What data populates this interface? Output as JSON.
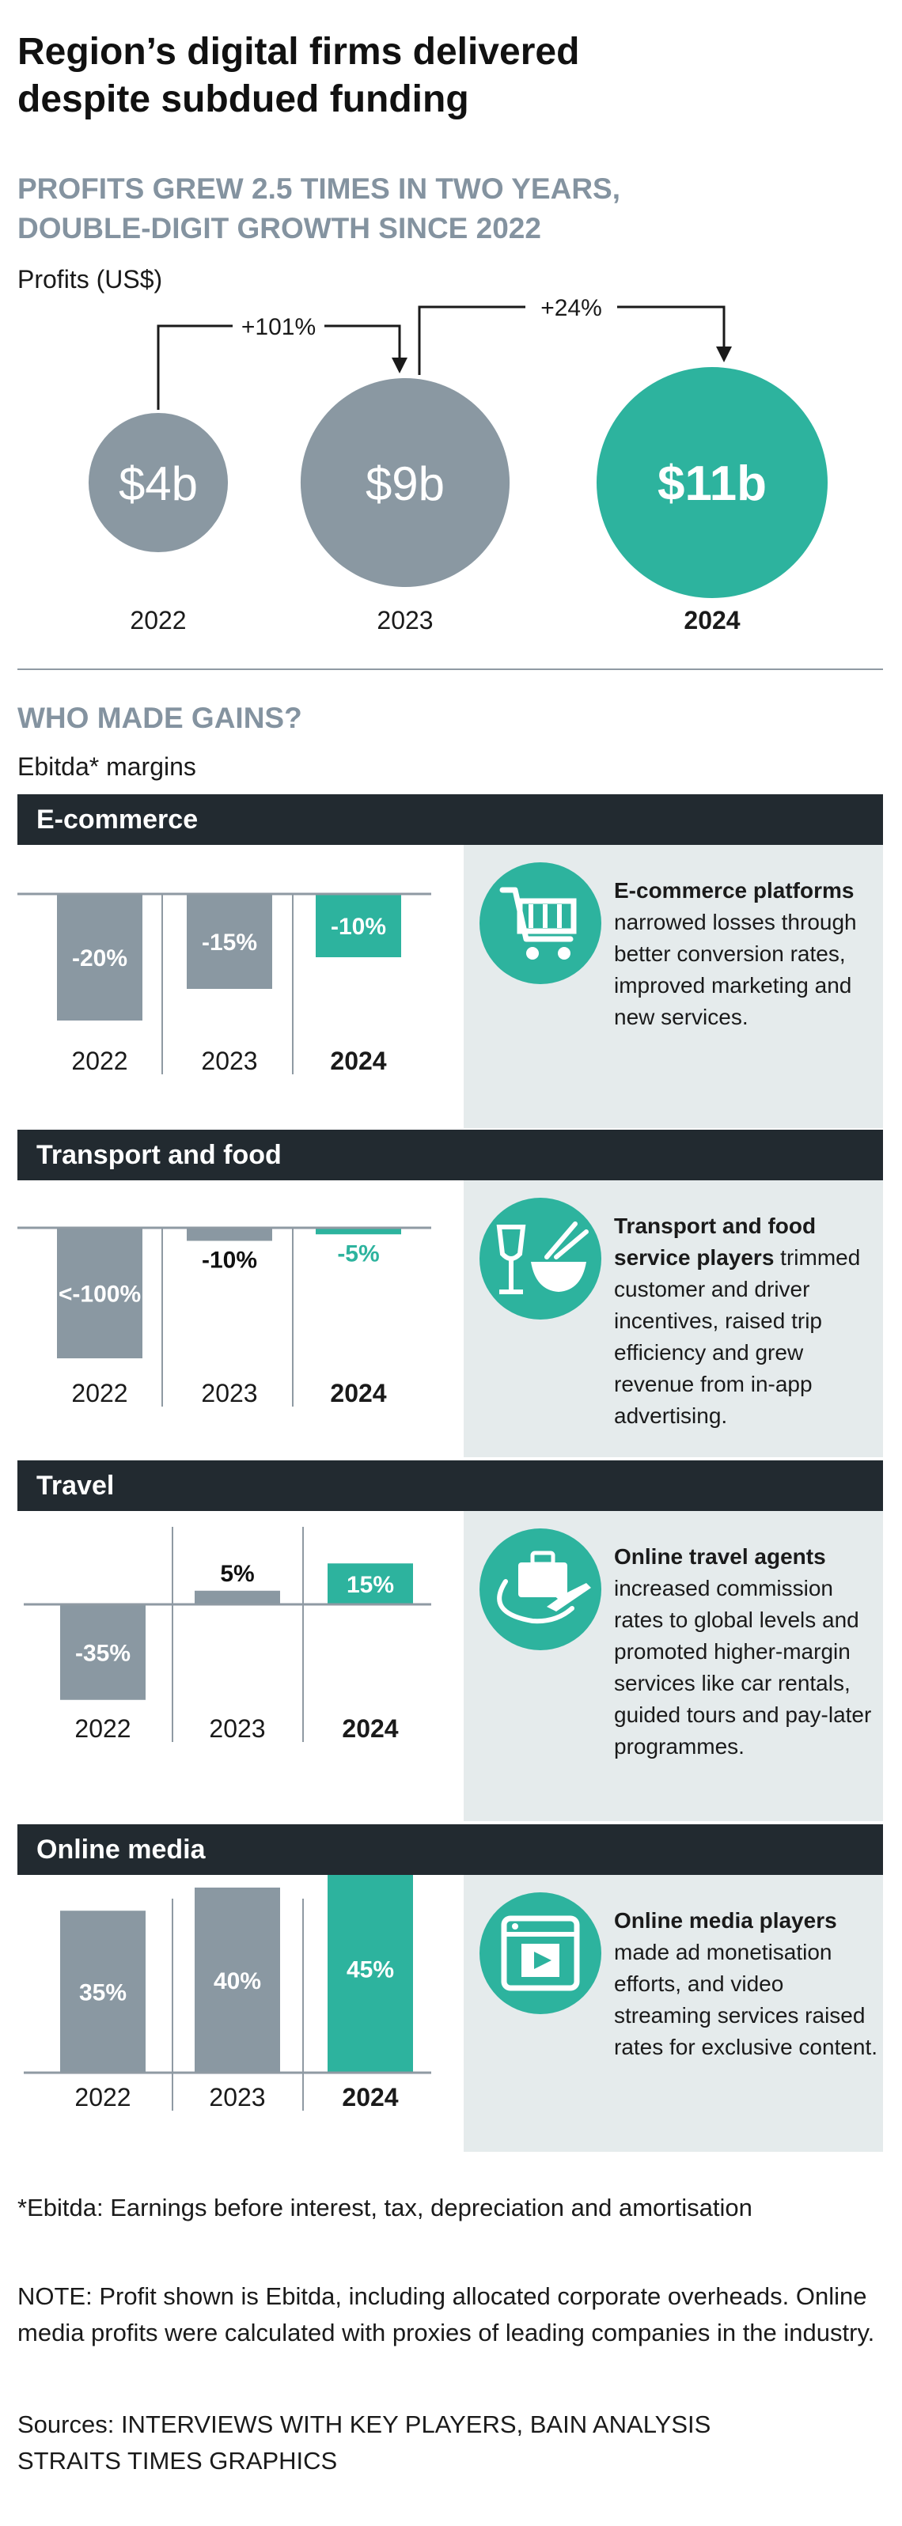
{
  "title_line1": "Region’s digital firms delivered",
  "title_line2": "despite subdued funding",
  "subtitle_line1": "PROFITS GREW 2.5 TIMES IN TWO YEARS,",
  "subtitle_line2": "DOUBLE-DIGIT GROWTH SINCE 2022",
  "profits_label": "Profits (US$)",
  "colors": {
    "grey": "#8a98a2",
    "teal": "#2db39e",
    "dark": "#222a30",
    "panel": "#e5ebec"
  },
  "profits": {
    "years": [
      "2022",
      "2023",
      "2024"
    ],
    "values": [
      4,
      9,
      11
    ],
    "labels": [
      "$4b",
      "$9b",
      "$11b"
    ],
    "growth": [
      "+101%",
      "+24%"
    ]
  },
  "who_title": "WHO MADE GAINS?",
  "ebitda_label": "Ebitda* margins",
  "chart_data": [
    {
      "type": "bar",
      "title": "Profits (US$)",
      "categories": [
        "2022",
        "2023",
        "2024"
      ],
      "values": [
        4,
        9,
        11
      ],
      "unit": "US$ billion",
      "annotations": [
        "+101%",
        "+24%"
      ]
    },
    {
      "type": "bar",
      "title": "E-commerce",
      "categories": [
        "2022",
        "2023",
        "2024"
      ],
      "values": [
        -20,
        -15,
        -10
      ],
      "labels": [
        "-20%",
        "-15%",
        "-10%"
      ],
      "ylabel": "Ebitda margin (%)"
    },
    {
      "type": "bar",
      "title": "Transport and food",
      "categories": [
        "2022",
        "2023",
        "2024"
      ],
      "values": [
        -100,
        -10,
        -5
      ],
      "labels": [
        "<-100%",
        "-10%",
        "-5%"
      ],
      "ylabel": "Ebitda margin (%)"
    },
    {
      "type": "bar",
      "title": "Travel",
      "categories": [
        "2022",
        "2023",
        "2024"
      ],
      "values": [
        -35,
        5,
        15
      ],
      "labels": [
        "-35%",
        "5%",
        "15%"
      ],
      "ylabel": "Ebitda margin (%)"
    },
    {
      "type": "bar",
      "title": "Online media",
      "categories": [
        "2022",
        "2023",
        "2024"
      ],
      "values": [
        35,
        40,
        45
      ],
      "labels": [
        "35%",
        "40%",
        "45%"
      ],
      "ylabel": "Ebitda margin (%)"
    }
  ],
  "segments": [
    {
      "name": "E-commerce",
      "icon": "shopping-cart-icon",
      "desc_bold": "E-commerce platforms",
      "desc_rest": " narrowed losses through better conversion rates, improved marketing and new services."
    },
    {
      "name": "Transport and food",
      "icon": "food-drink-icon",
      "desc_bold": "Transport and food service players",
      "desc_rest": " trimmed customer and driver incentives, raised trip efficiency and grew revenue from in-app advertising."
    },
    {
      "name": "Travel",
      "icon": "suitcase-plane-icon",
      "desc_bold": "Online travel agents",
      "desc_rest": " increased commission rates to global levels and promoted higher-margin services like car rentals, guided tours and pay-later programmes."
    },
    {
      "name": "Online media",
      "icon": "video-play-icon",
      "desc_bold": "Online media players",
      "desc_rest": " made ad monetisation efforts, and video streaming services raised rates for exclusive content."
    }
  ],
  "footnote": "*Ebitda: Earnings before interest, tax, depreciation and amortisation",
  "note": "NOTE: Profit shown is Ebitda, including allocated corporate overheads. Online media profits were calculated with proxies of leading companies in the industry.",
  "sources_line1": "Sources: INTERVIEWS WITH KEY PLAYERS, BAIN ANALYSIS",
  "sources_line2": "STRAITS TIMES GRAPHICS"
}
